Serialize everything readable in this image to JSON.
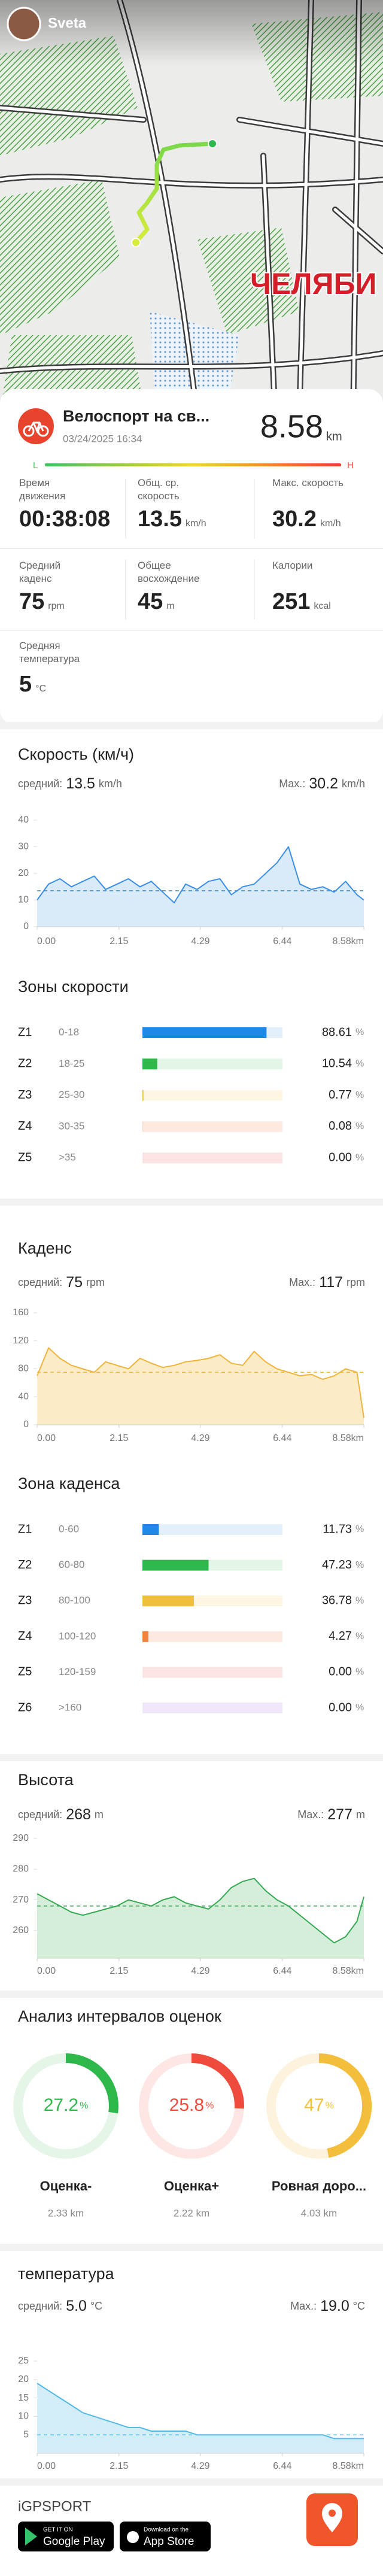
{
  "header": {
    "user": "Sveta",
    "map_label": "ЧЕЛЯБИ"
  },
  "activity": {
    "title": "Велоспорт на св...",
    "date": "03/24/2025 16:34",
    "distance": "8.58",
    "distance_unit": "km",
    "scale_low": "L",
    "scale_high": "H",
    "stats": [
      {
        "label": "Время движения",
        "value": "00:38:08"
      },
      {
        "label": "Общ. ср. скорость",
        "value": "13.5",
        "unit": "km/h"
      },
      {
        "label": "Макс. скорость",
        "value": "30.2",
        "unit": "km/h"
      },
      {
        "label": "Средний каденс",
        "value": "75",
        "unit": "rpm"
      },
      {
        "label": "Общее восхождение",
        "value": "45",
        "unit": "m"
      },
      {
        "label": "Калории",
        "value": "251",
        "unit": "kcal"
      },
      {
        "label": "Средняя температура",
        "value": "5",
        "unit": "°C"
      }
    ]
  },
  "chart_data": [
    {
      "type": "area",
      "title": "Скорость (км/ч)",
      "mean_label": "средний:",
      "mean": 13.5,
      "max_label": "Max.:",
      "max": 30.2,
      "unit": "km/h",
      "color": "#3a8ee6",
      "fill": "#d2e6f8",
      "x": [
        0,
        0.3,
        0.6,
        0.9,
        1.2,
        1.5,
        1.8,
        2.1,
        2.4,
        2.7,
        3,
        3.3,
        3.6,
        3.9,
        4.2,
        4.5,
        4.8,
        5.1,
        5.4,
        5.7,
        6,
        6.3,
        6.6,
        6.9,
        7.2,
        7.5,
        7.8,
        8.1,
        8.4,
        8.58
      ],
      "values": [
        10,
        16,
        18,
        15,
        17,
        19,
        14,
        16,
        18,
        15,
        17,
        13,
        9,
        16,
        14,
        17,
        18,
        12,
        15,
        16,
        20,
        24,
        30,
        16,
        14,
        15,
        13,
        17,
        12,
        10
      ],
      "xlim": [
        0,
        8.58
      ],
      "xticks": [
        {
          "value": 0,
          "label": "0.00"
        },
        2.15,
        4.29,
        6.44,
        {
          "value": 8.58,
          "label": "8.58km"
        }
      ],
      "ylim": [
        0,
        40
      ],
      "yticks": [
        0,
        10,
        20,
        30,
        40
      ]
    },
    {
      "type": "hbar",
      "title": "Зоны скорости",
      "categories": [
        "Z1",
        "Z2",
        "Z3",
        "Z4",
        "Z5"
      ],
      "ranges": [
        "0-18",
        "18-25",
        "25-30",
        "30-35",
        ">35"
      ],
      "values": [
        88.61,
        10.54,
        0.77,
        0.08,
        0
      ],
      "value_labels": [
        "88.61",
        "10.54",
        "0.77",
        "0.08",
        "0.00"
      ],
      "unit": "%",
      "colors": [
        "#1e88e5",
        "#2eb84b",
        "#f0c03c",
        "#f0823c",
        "#ef5350"
      ],
      "track_colors": [
        "#e3f0fc",
        "#e3f5e6",
        "#fdf6e2",
        "#fde9df",
        "#fde4e4"
      ]
    },
    {
      "type": "area",
      "title": "Каденс",
      "mean_label": "средний:",
      "mean": 75,
      "max_label": "Max.:",
      "max": 117,
      "unit": "rpm",
      "color": "#f0b43c",
      "fill": "#fbe8bd",
      "x": [
        0,
        0.3,
        0.6,
        0.9,
        1.2,
        1.5,
        1.8,
        2.1,
        2.4,
        2.7,
        3,
        3.3,
        3.6,
        3.9,
        4.2,
        4.5,
        4.8,
        5.1,
        5.4,
        5.7,
        6,
        6.3,
        6.6,
        6.9,
        7.2,
        7.5,
        7.8,
        8.1,
        8.4,
        8.58
      ],
      "values": [
        70,
        110,
        95,
        85,
        80,
        75,
        90,
        85,
        80,
        95,
        88,
        82,
        85,
        90,
        92,
        95,
        100,
        88,
        85,
        105,
        90,
        80,
        75,
        70,
        72,
        65,
        70,
        80,
        75,
        10
      ],
      "xlim": [
        0,
        8.58
      ],
      "xticks": [
        {
          "value": 0,
          "label": "0.00"
        },
        2.15,
        4.29,
        6.44,
        {
          "value": 8.58,
          "label": "8.58km"
        }
      ],
      "ylim": [
        0,
        160
      ],
      "yticks": [
        0,
        40,
        80,
        120,
        160
      ]
    },
    {
      "type": "hbar",
      "title": "Зона каденса",
      "categories": [
        "Z1",
        "Z2",
        "Z3",
        "Z4",
        "Z5",
        "Z6"
      ],
      "ranges": [
        "0-60",
        "60-80",
        "80-100",
        "100-120",
        "120-159",
        ">160"
      ],
      "values": [
        11.73,
        47.23,
        36.78,
        4.27,
        0,
        0
      ],
      "value_labels": [
        "11.73",
        "47.23",
        "36.78",
        "4.27",
        "0.00",
        "0.00"
      ],
      "unit": "%",
      "colors": [
        "#1e88e5",
        "#2eb84b",
        "#f0c03c",
        "#f0823c",
        "#ef5350",
        "#9c6ade"
      ],
      "track_colors": [
        "#e3f0fc",
        "#e3f5e6",
        "#fdf6e2",
        "#fde9df",
        "#fde4e4",
        "#f0e8fa"
      ]
    },
    {
      "type": "area",
      "title": "Высота",
      "mean_label": "средний:",
      "mean": 268,
      "max_label": "Max.:",
      "max": 277,
      "unit": "m",
      "color": "#35a853",
      "fill": "#cdebd3",
      "x": [
        0,
        0.3,
        0.6,
        0.9,
        1.2,
        1.5,
        1.8,
        2.1,
        2.4,
        2.7,
        3,
        3.3,
        3.6,
        3.9,
        4.2,
        4.5,
        4.8,
        5.1,
        5.4,
        5.7,
        6,
        6.3,
        6.6,
        6.9,
        7.2,
        7.5,
        7.8,
        8.1,
        8.4,
        8.58
      ],
      "values": [
        272,
        270,
        268,
        266,
        265,
        266,
        267,
        268,
        270,
        269,
        268,
        270,
        271,
        269,
        268,
        267,
        270,
        274,
        276,
        277,
        273,
        270,
        268,
        265,
        262,
        259,
        256,
        258,
        263,
        271
      ],
      "xlim": [
        0,
        8.58
      ],
      "xticks": [
        {
          "value": 0,
          "label": "0.00"
        },
        2.15,
        4.29,
        6.44,
        {
          "value": 8.58,
          "label": "8.58km"
        }
      ],
      "ylim": [
        251,
        290
      ],
      "yticks": [
        260,
        270,
        280,
        290
      ]
    },
    {
      "type": "donut",
      "title": "Анализ интервалов оценок",
      "labels": [
        "Оценка-",
        "Оценка+",
        "Ровная доро..."
      ],
      "values": [
        27.2,
        25.8,
        47
      ],
      "unit": "%",
      "distances": [
        "2.33 km",
        "2.22 km",
        "4.03 km"
      ],
      "colors": [
        "#2eb84b",
        "#ef4b3c",
        "#f3be3c"
      ],
      "track_colors": [
        "#e5f6e8",
        "#fde6e3",
        "#fdf3dc"
      ]
    },
    {
      "type": "area",
      "title": "температура",
      "mean_label": "средний:",
      "mean": {
        "value": 5,
        "label": "5.0"
      },
      "max_label": "Max.:",
      "max": {
        "value": 19,
        "label": "19.0"
      },
      "unit": "°C",
      "color": "#52b9e5",
      "fill": "#cbeaf7",
      "x": [
        0,
        0.3,
        0.6,
        0.9,
        1.2,
        1.5,
        1.8,
        2.1,
        2.4,
        2.7,
        3,
        3.3,
        3.6,
        3.9,
        4.2,
        4.5,
        4.8,
        5.1,
        5.4,
        5.7,
        6,
        6.3,
        6.6,
        6.9,
        7.2,
        7.5,
        7.8,
        8.1,
        8.4,
        8.58
      ],
      "values": [
        19,
        17,
        15,
        13,
        11,
        10,
        9,
        8,
        7,
        7,
        6,
        6,
        6,
        6,
        5,
        5,
        5,
        5,
        5,
        5,
        5,
        5,
        5,
        5,
        5,
        5,
        4,
        4,
        4,
        4
      ],
      "xlim": [
        0,
        8.58
      ],
      "xticks": [
        {
          "value": 0,
          "label": "0.00"
        },
        2.15,
        4.29,
        6.44,
        {
          "value": 8.58,
          "label": "8.58km"
        }
      ],
      "ylim": [
        0,
        25
      ],
      "yticks": [
        5,
        10,
        15,
        20,
        25
      ]
    }
  ],
  "footer": {
    "brand": "iGPSPORT",
    "google_small": "GET IT ON",
    "google": "Google Play",
    "apple_small": "Download on the",
    "apple": "App Store"
  }
}
